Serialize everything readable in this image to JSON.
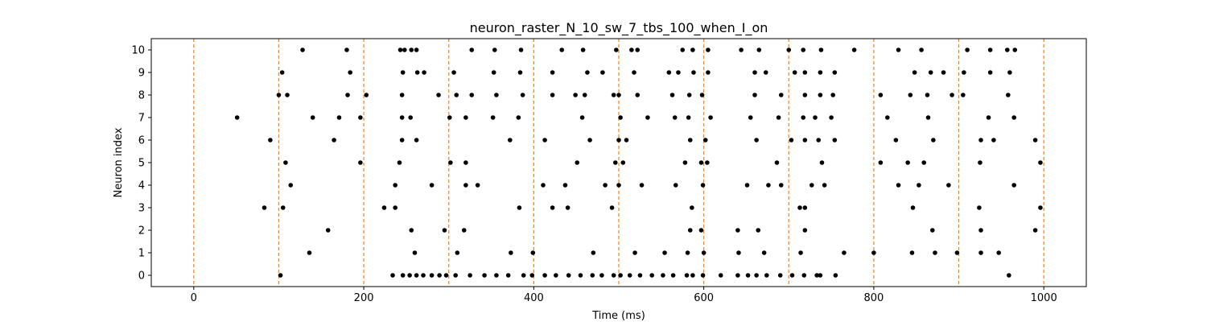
{
  "chart_data": {
    "type": "scatter",
    "title": "neuron_raster_N_10_sw_7_tbs_100_when_I_on",
    "xlabel": "Time (ms)",
    "ylabel": "Neuron index",
    "xlim": [
      -50,
      1050
    ],
    "ylim": [
      -0.5,
      10.5
    ],
    "xticks": [
      0,
      200,
      400,
      600,
      800,
      1000
    ],
    "yticks": [
      0,
      1,
      2,
      3,
      4,
      5,
      6,
      7,
      8,
      9,
      10
    ],
    "grid": false,
    "marker_color": "#000000",
    "vline_color": "#ff7f0e",
    "vline_style": "dashed",
    "vlines": [
      0,
      100,
      200,
      300,
      400,
      500,
      600,
      700,
      800,
      900,
      1000
    ],
    "spikes": [
      {
        "neuron": 0,
        "times": [
          102,
          234,
          246,
          254,
          262,
          270,
          280,
          289,
          297,
          308,
          325,
          342,
          356,
          370,
          388,
          398,
          413,
          426,
          441,
          455,
          469,
          480,
          494,
          502,
          513,
          525,
          539,
          552,
          564,
          580,
          587,
          599,
          620,
          640,
          652,
          662,
          674,
          690,
          704,
          718,
          733,
          737,
          755,
          959
        ]
      },
      {
        "neuron": 1,
        "times": [
          136,
          260,
          310,
          373,
          399,
          470,
          519,
          554,
          581,
          600,
          641,
          671,
          714,
          765,
          800,
          845,
          872,
          898,
          926,
          947
        ]
      },
      {
        "neuron": 2,
        "times": [
          158,
          256,
          295,
          318,
          584,
          597,
          640,
          664,
          719,
          869,
          926,
          990
        ]
      },
      {
        "neuron": 3,
        "times": [
          83,
          105,
          224,
          237,
          383,
          422,
          440,
          492,
          586,
          713,
          719,
          846,
          924,
          996
        ]
      },
      {
        "neuron": 4,
        "times": [
          114,
          237,
          280,
          320,
          334,
          411,
          437,
          484,
          500,
          527,
          567,
          599,
          651,
          676,
          691,
          727,
          742,
          829,
          853,
          888,
          965
        ]
      },
      {
        "neuron": 5,
        "times": [
          108,
          196,
          242,
          302,
          320,
          451,
          496,
          505,
          578,
          597,
          604,
          686,
          739,
          808,
          840,
          859,
          925,
          996
        ]
      },
      {
        "neuron": 6,
        "times": [
          90,
          165,
          245,
          262,
          372,
          413,
          466,
          500,
          509,
          584,
          602,
          662,
          703,
          719,
          735,
          754,
          826,
          870,
          926,
          941,
          990
        ]
      },
      {
        "neuron": 7,
        "times": [
          51,
          140,
          171,
          196,
          245,
          255,
          301,
          320,
          352,
          382,
          457,
          502,
          534,
          566,
          582,
          608,
          655,
          688,
          717,
          731,
          750,
          816,
          864,
          935,
          965
        ]
      },
      {
        "neuron": 8,
        "times": [
          100,
          110,
          181,
          203,
          245,
          288,
          309,
          327,
          356,
          387,
          422,
          449,
          460,
          494,
          500,
          522,
          563,
          583,
          598,
          660,
          691,
          719,
          737,
          752,
          808,
          843,
          863,
          892,
          905,
          958
        ]
      },
      {
        "neuron": 9,
        "times": [
          104,
          184,
          246,
          263,
          271,
          306,
          353,
          384,
          422,
          463,
          481,
          518,
          559,
          570,
          588,
          605,
          660,
          673,
          707,
          719,
          737,
          754,
          848,
          867,
          882,
          906,
          937,
          960
        ]
      },
      {
        "neuron": 10,
        "times": [
          128,
          180,
          243,
          248,
          256,
          262,
          327,
          354,
          385,
          433,
          458,
          497,
          515,
          522,
          575,
          587,
          605,
          644,
          665,
          700,
          717,
          738,
          777,
          829,
          856,
          910,
          937,
          957,
          966
        ]
      }
    ]
  }
}
